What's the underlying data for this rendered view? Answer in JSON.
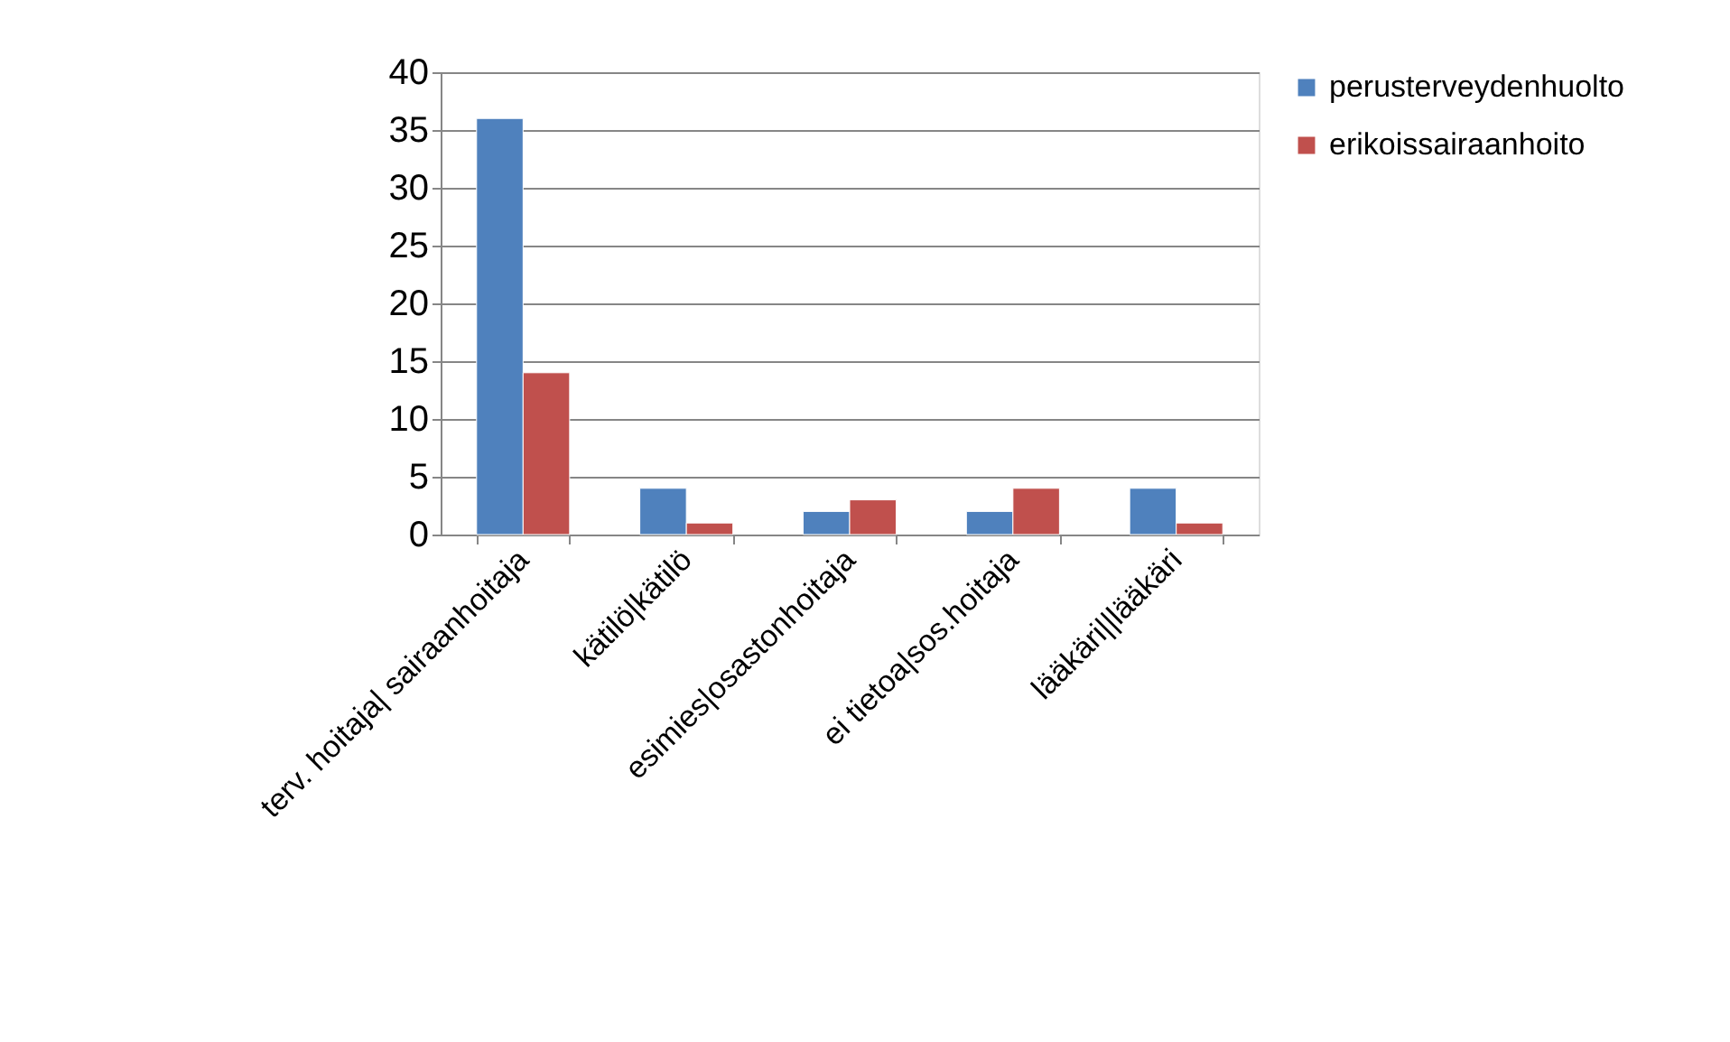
{
  "chart_data": {
    "type": "bar",
    "categories": [
      "terv. hoitaja| sairaanhoitaja",
      "kätilö|kätilö",
      "esimies|osastonhoitaja",
      "ei tietoa|sos.hoitaja",
      "lääkäri||lääkäri"
    ],
    "series": [
      {
        "name": "perusterveydenhuolto",
        "color": "#4f81bd",
        "values": [
          36,
          4,
          2,
          2,
          4
        ]
      },
      {
        "name": "erikoissairaanhoito",
        "color": "#c0504d",
        "values": [
          14,
          1,
          3,
          4,
          1
        ]
      }
    ],
    "ylim": [
      0,
      40
    ],
    "yticks": [
      0,
      5,
      10,
      15,
      20,
      25,
      30,
      35,
      40
    ],
    "grid": "y",
    "legend": "right"
  }
}
